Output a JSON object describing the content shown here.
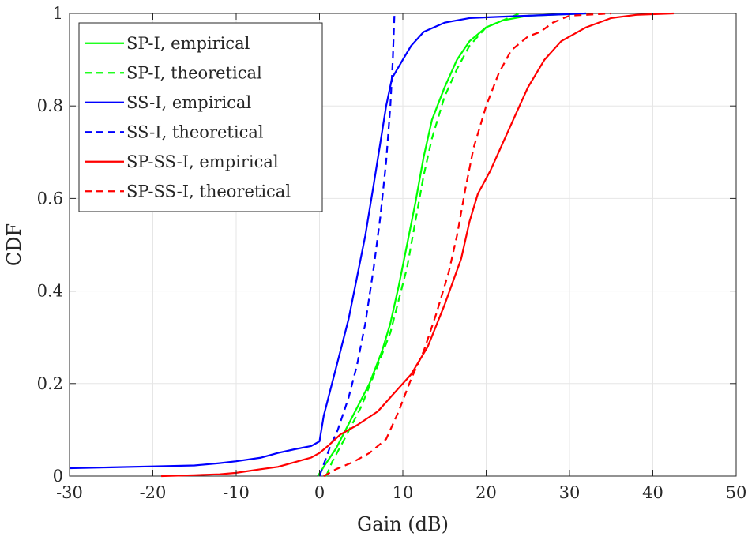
{
  "chart_data": {
    "type": "line",
    "title": "",
    "xlabel": "Gain (dB)",
    "ylabel": "CDF",
    "xlim": [
      -30,
      50
    ],
    "ylim": [
      0,
      1
    ],
    "xticks": [
      -30,
      -20,
      -10,
      0,
      10,
      20,
      30,
      40,
      50
    ],
    "xtick_labels": [
      "-30",
      "-20",
      "-10",
      "0",
      "10",
      "20",
      "30",
      "40",
      "50"
    ],
    "yticks": [
      0,
      0.2,
      0.4,
      0.6,
      0.8,
      1
    ],
    "ytick_labels": [
      "0",
      "0.2",
      "0.4",
      "0.6",
      "0.8",
      "1"
    ],
    "grid": true,
    "legend_position": "top-left",
    "series": [
      {
        "name": "SP-I, empirical",
        "color": "#00ff00",
        "dash": "solid",
        "points": [
          [
            -0.2,
            0
          ],
          [
            0.5,
            0.02
          ],
          [
            2,
            0.06
          ],
          [
            4,
            0.13
          ],
          [
            6,
            0.2
          ],
          [
            7.5,
            0.27
          ],
          [
            8.5,
            0.33
          ],
          [
            9.5,
            0.41
          ],
          [
            10.5,
            0.5
          ],
          [
            11.5,
            0.59
          ],
          [
            12.5,
            0.69
          ],
          [
            13.5,
            0.77
          ],
          [
            15,
            0.84
          ],
          [
            16.5,
            0.9
          ],
          [
            18,
            0.94
          ],
          [
            20,
            0.97
          ],
          [
            22,
            0.985
          ],
          [
            25,
            0.995
          ],
          [
            32,
            1
          ]
        ]
      },
      {
        "name": "SP-I, theoretical",
        "color": "#00ff00",
        "dash": "dashed",
        "points": [
          [
            0.8,
            0
          ],
          [
            1.5,
            0.03
          ],
          [
            3,
            0.08
          ],
          [
            5,
            0.15
          ],
          [
            7,
            0.24
          ],
          [
            8.5,
            0.31
          ],
          [
            9.5,
            0.38
          ],
          [
            10.5,
            0.45
          ],
          [
            11.5,
            0.55
          ],
          [
            12.5,
            0.65
          ],
          [
            13.5,
            0.73
          ],
          [
            15,
            0.82
          ],
          [
            16.5,
            0.88
          ],
          [
            18,
            0.93
          ],
          [
            20,
            0.97
          ],
          [
            22,
            0.985
          ],
          [
            24,
            1
          ]
        ]
      },
      {
        "name": "SS-I, empirical",
        "color": "#0000ff",
        "dash": "solid",
        "points": [
          [
            -30,
            0.017
          ],
          [
            -25,
            0.019
          ],
          [
            -20,
            0.021
          ],
          [
            -15,
            0.023
          ],
          [
            -12,
            0.028
          ],
          [
            -10,
            0.032
          ],
          [
            -7,
            0.04
          ],
          [
            -5,
            0.05
          ],
          [
            -3,
            0.058
          ],
          [
            -1,
            0.065
          ],
          [
            0,
            0.075
          ],
          [
            0.5,
            0.13
          ],
          [
            1.5,
            0.2
          ],
          [
            2.5,
            0.27
          ],
          [
            3.5,
            0.34
          ],
          [
            4.5,
            0.43
          ],
          [
            5.5,
            0.52
          ],
          [
            6.5,
            0.63
          ],
          [
            7.3,
            0.72
          ],
          [
            8,
            0.8
          ],
          [
            8.7,
            0.86
          ],
          [
            10,
            0.9
          ],
          [
            11,
            0.93
          ],
          [
            12.5,
            0.96
          ],
          [
            15,
            0.98
          ],
          [
            18,
            0.99
          ],
          [
            22,
            0.993
          ],
          [
            32,
            1
          ]
        ]
      },
      {
        "name": "SS-I, theoretical",
        "color": "#0000ff",
        "dash": "dashed",
        "points": [
          [
            0,
            0
          ],
          [
            1.2,
            0.06
          ],
          [
            2.2,
            0.1
          ],
          [
            3.5,
            0.17
          ],
          [
            4.5,
            0.24
          ],
          [
            5.5,
            0.33
          ],
          [
            6.5,
            0.45
          ],
          [
            7.3,
            0.56
          ],
          [
            8,
            0.68
          ],
          [
            8.5,
            0.8
          ],
          [
            8.8,
            0.9
          ],
          [
            9,
            1
          ]
        ]
      },
      {
        "name": "SP-SS-I, empirical",
        "color": "#ff0000",
        "dash": "solid",
        "points": [
          [
            -19,
            0
          ],
          [
            -15,
            0.002
          ],
          [
            -12,
            0.004
          ],
          [
            -10,
            0.007
          ],
          [
            -7,
            0.015
          ],
          [
            -5,
            0.02
          ],
          [
            -3,
            0.03
          ],
          [
            -1,
            0.04
          ],
          [
            0,
            0.05
          ],
          [
            1,
            0.065
          ],
          [
            2.5,
            0.09
          ],
          [
            4.5,
            0.11
          ],
          [
            7,
            0.14
          ],
          [
            9,
            0.18
          ],
          [
            11,
            0.22
          ],
          [
            13,
            0.28
          ],
          [
            15,
            0.37
          ],
          [
            17,
            0.47
          ],
          [
            18,
            0.55
          ],
          [
            19,
            0.61
          ],
          [
            20.5,
            0.66
          ],
          [
            22,
            0.72
          ],
          [
            23.5,
            0.78
          ],
          [
            25,
            0.84
          ],
          [
            27,
            0.9
          ],
          [
            29,
            0.94
          ],
          [
            32,
            0.97
          ],
          [
            35,
            0.99
          ],
          [
            38,
            0.997
          ],
          [
            42.5,
            1
          ]
        ]
      },
      {
        "name": "SP-SS-I, theoretical",
        "color": "#ff0000",
        "dash": "dashed",
        "points": [
          [
            0.5,
            0
          ],
          [
            2,
            0.015
          ],
          [
            4,
            0.03
          ],
          [
            6,
            0.05
          ],
          [
            8,
            0.08
          ],
          [
            9.5,
            0.14
          ],
          [
            11,
            0.21
          ],
          [
            12.5,
            0.27
          ],
          [
            14,
            0.35
          ],
          [
            15.5,
            0.44
          ],
          [
            16.5,
            0.52
          ],
          [
            17.5,
            0.62
          ],
          [
            18.5,
            0.71
          ],
          [
            20,
            0.8
          ],
          [
            21.5,
            0.87
          ],
          [
            23,
            0.92
          ],
          [
            25,
            0.95
          ],
          [
            26.5,
            0.96
          ],
          [
            28,
            0.98
          ],
          [
            30,
            0.995
          ],
          [
            35,
            1
          ]
        ]
      }
    ]
  }
}
